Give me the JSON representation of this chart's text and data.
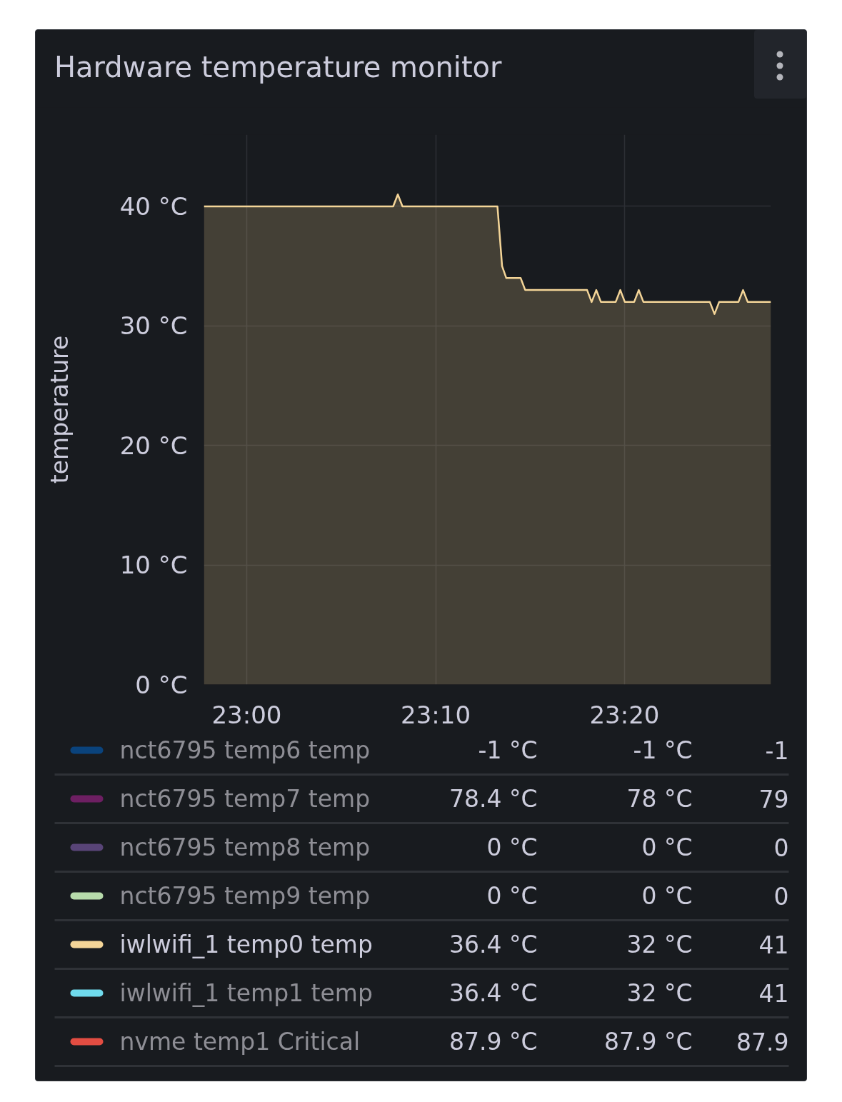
{
  "chart_data": {
    "type": "area",
    "title": "Hardware temperature monitor",
    "ylabel": "temperature",
    "x": [
      22.9622,
      23.1292,
      23.1333,
      23.1374,
      23.2212,
      23.2253,
      23.229,
      23.2417,
      23.2457,
      23.3003,
      23.3043,
      23.3084,
      23.3125,
      23.3255,
      23.3296,
      23.3336,
      23.3418,
      23.3459,
      23.35,
      23.4086,
      23.4127,
      23.4168,
      23.4338,
      23.4379,
      23.442,
      23.4625
    ],
    "xlim": [
      22.9622,
      23.4625
    ],
    "xticks": [
      {
        "value": 23,
        "label": "23:00"
      },
      {
        "value": 23.1667,
        "label": "23:10"
      },
      {
        "value": 23.3333,
        "label": "23:20"
      }
    ],
    "ylim": [
      0,
      46
    ],
    "yticks": [
      {
        "value": 0,
        "label": "0 °C"
      },
      {
        "value": 10,
        "label": "10 °C"
      },
      {
        "value": 20,
        "label": "20 °C"
      },
      {
        "value": 30,
        "label": "30 °C"
      },
      {
        "value": 40,
        "label": "40 °C"
      }
    ],
    "grid": true,
    "legend": "bottom",
    "line_style": "solid",
    "series": [
      {
        "name": "nct6795 temp6 temp",
        "color": "#0a437c",
        "values": [
          null,
          null,
          null,
          null,
          null,
          null,
          null,
          null,
          null,
          null,
          null,
          null,
          null,
          null,
          null,
          null,
          null,
          null,
          null,
          null,
          null,
          null,
          null,
          null,
          null,
          null
        ]
      },
      {
        "name": "nct6795 temp7 temp",
        "color": "#6d1f62",
        "values": [
          null,
          null,
          null,
          null,
          null,
          null,
          null,
          null,
          null,
          null,
          null,
          null,
          null,
          null,
          null,
          null,
          null,
          null,
          null,
          null,
          null,
          null,
          null,
          null,
          null,
          null
        ]
      },
      {
        "name": "nct6795 temp8 temp",
        "color": "#584477",
        "values": [
          null,
          null,
          null,
          null,
          null,
          null,
          null,
          null,
          null,
          null,
          null,
          null,
          null,
          null,
          null,
          null,
          null,
          null,
          null,
          null,
          null,
          null,
          null,
          null,
          null,
          null
        ]
      },
      {
        "name": "nct6795 temp9 temp",
        "color": "#b7dbab",
        "values": [
          null,
          null,
          null,
          null,
          null,
          null,
          null,
          null,
          null,
          null,
          null,
          null,
          null,
          null,
          null,
          null,
          null,
          null,
          null,
          null,
          null,
          null,
          null,
          null,
          null,
          null
        ]
      },
      {
        "name": "iwlwifi_1 temp0 temp",
        "color": "#f4d598",
        "values": [
          40,
          40,
          41,
          40,
          40,
          35,
          34,
          34,
          33,
          33,
          32,
          33,
          32,
          32,
          33,
          32,
          32,
          33,
          32,
          32,
          31,
          32,
          32,
          33,
          32,
          32
        ]
      },
      {
        "name": "iwlwifi_1 temp1 temp",
        "color": "#70dbed",
        "values": [
          null,
          null,
          null,
          null,
          null,
          null,
          null,
          null,
          null,
          null,
          null,
          null,
          null,
          null,
          null,
          null,
          null,
          null,
          null,
          null,
          null,
          null,
          null,
          null,
          null,
          null
        ]
      },
      {
        "name": "nvme temp1 Critical",
        "color": "#e24d42",
        "values": [
          null,
          null,
          null,
          null,
          null,
          null,
          null,
          null,
          null,
          null,
          null,
          null,
          null,
          null,
          null,
          null,
          null,
          null,
          null,
          null,
          null,
          null,
          null,
          null,
          null,
          null
        ]
      }
    ],
    "annotations": [
      "-1 °C",
      "-1 °C",
      "-1",
      "78.4 °C",
      "78 °C",
      "79",
      "0 °C",
      "0 °C",
      "0",
      "0 °C",
      "0 °C",
      "0",
      "36.4 °C",
      "32 °C",
      "41",
      "36.4 °C",
      "32 °C",
      "41",
      "87.9 °C",
      "87.9 °C",
      "87.9"
    ]
  }
}
